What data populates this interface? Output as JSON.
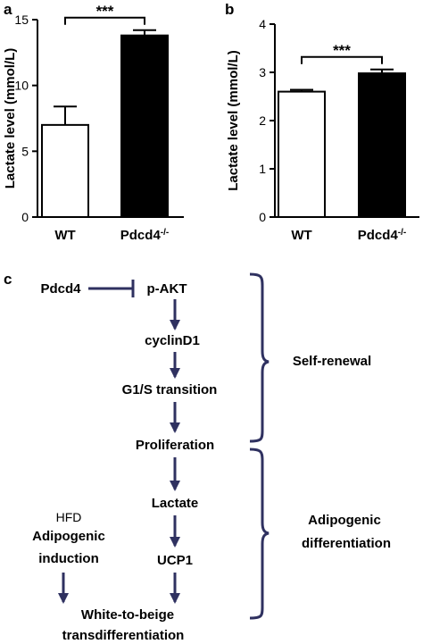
{
  "panels": {
    "a": "a",
    "b": "b",
    "c": "c"
  },
  "chart_data": [
    {
      "type": "bar",
      "panel": "a",
      "categories": [
        "WT",
        "Pdcd4"
      ],
      "category_superscripts": [
        "",
        "-/-"
      ],
      "values": [
        7.0,
        13.8
      ],
      "errors": [
        1.4,
        0.4
      ],
      "bar_colors": [
        "#ffffff",
        "#000000"
      ],
      "ylabel": "Lactate level (mmol/L)",
      "ylim": [
        0,
        15
      ],
      "yticks": [
        "0",
        "5",
        "10",
        "15"
      ],
      "significance": "***",
      "grid": false
    },
    {
      "type": "bar",
      "panel": "b",
      "categories": [
        "WT",
        "Pdcd4"
      ],
      "category_superscripts": [
        "",
        "-/-"
      ],
      "values": [
        2.6,
        2.98
      ],
      "errors": [
        0.04,
        0.08
      ],
      "bar_colors": [
        "#ffffff",
        "#000000"
      ],
      "ylabel": "Lactate level (mmol/L)",
      "ylim": [
        0,
        4
      ],
      "yticks": [
        "0",
        "1",
        "2",
        "3",
        "4"
      ],
      "significance": "***",
      "grid": false
    }
  ],
  "diagram": {
    "inhibitor": "Pdcd4",
    "pathway": [
      "p-AKT",
      "cyclinD1",
      "G1/S transition",
      "Proliferation",
      "Lactate",
      "UCP1"
    ],
    "side_label_1": "HFD",
    "side_label_2": "Adipogenic",
    "side_label_3": "induction",
    "outcome_line_1": "White-to-beige",
    "outcome_line_2": "transdifferentiation",
    "bracket_1_label": "Self-renewal",
    "bracket_2_label_1": "Adipogenic",
    "bracket_2_label_2": "differentiation",
    "colors": {
      "arrows": "#2f3160",
      "text": "#000000"
    }
  }
}
